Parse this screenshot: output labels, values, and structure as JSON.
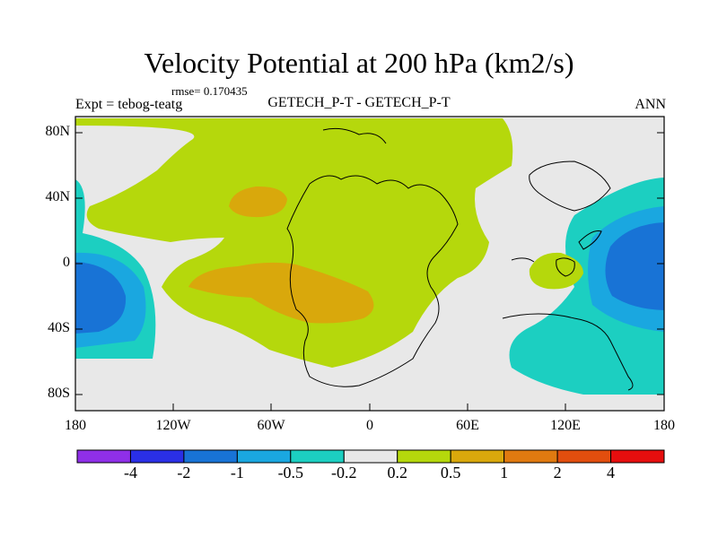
{
  "chart_data": {
    "type": "contour-map",
    "title": "Velocity Potential at 200 hPa (km2/s)",
    "rmse_text": "rmse= 0.170435",
    "left_label": "Expt = tebog-teatg",
    "center_label": "GETECH_P-T - GETECH_P-T",
    "right_label": "ANN",
    "y_ticks": [
      "80N",
      "40N",
      "0",
      "40S",
      "80S"
    ],
    "x_ticks": [
      "180",
      "120W",
      "60W",
      "0",
      "60E",
      "120E",
      "180"
    ],
    "lon_range": [
      -180,
      180
    ],
    "lat_range": [
      -90,
      90
    ],
    "colorbar": {
      "colors": [
        "#8f2fe8",
        "#2a2fe6",
        "#1873d6",
        "#1aa7e0",
        "#1ccfc1",
        "#e8e8e8",
        "#b5d80c",
        "#d9a80c",
        "#e07a10",
        "#e24e0e",
        "#e60e0e"
      ],
      "labels": [
        "-4",
        "-2",
        "-1",
        "-0.5",
        "-0.2",
        "0.2",
        "0.5",
        "1",
        "2",
        "4"
      ]
    },
    "regions": [
      {
        "name": "positive-0.2-0.5",
        "level": "0.2 to 0.5",
        "color": "#b5d80c"
      },
      {
        "name": "positive-0.5-1-north",
        "level": "0.5 to 1",
        "color": "#d9a80c"
      },
      {
        "name": "positive-0.5-1-tropical",
        "level": "0.5 to 1",
        "color": "#d9a80c"
      },
      {
        "name": "negative-east-pacific",
        "level": "-1 to -0.2",
        "color": "#1873d6"
      },
      {
        "name": "negative-west-pacific",
        "level": "-1 to -0.2",
        "color": "#1873d6"
      }
    ]
  }
}
